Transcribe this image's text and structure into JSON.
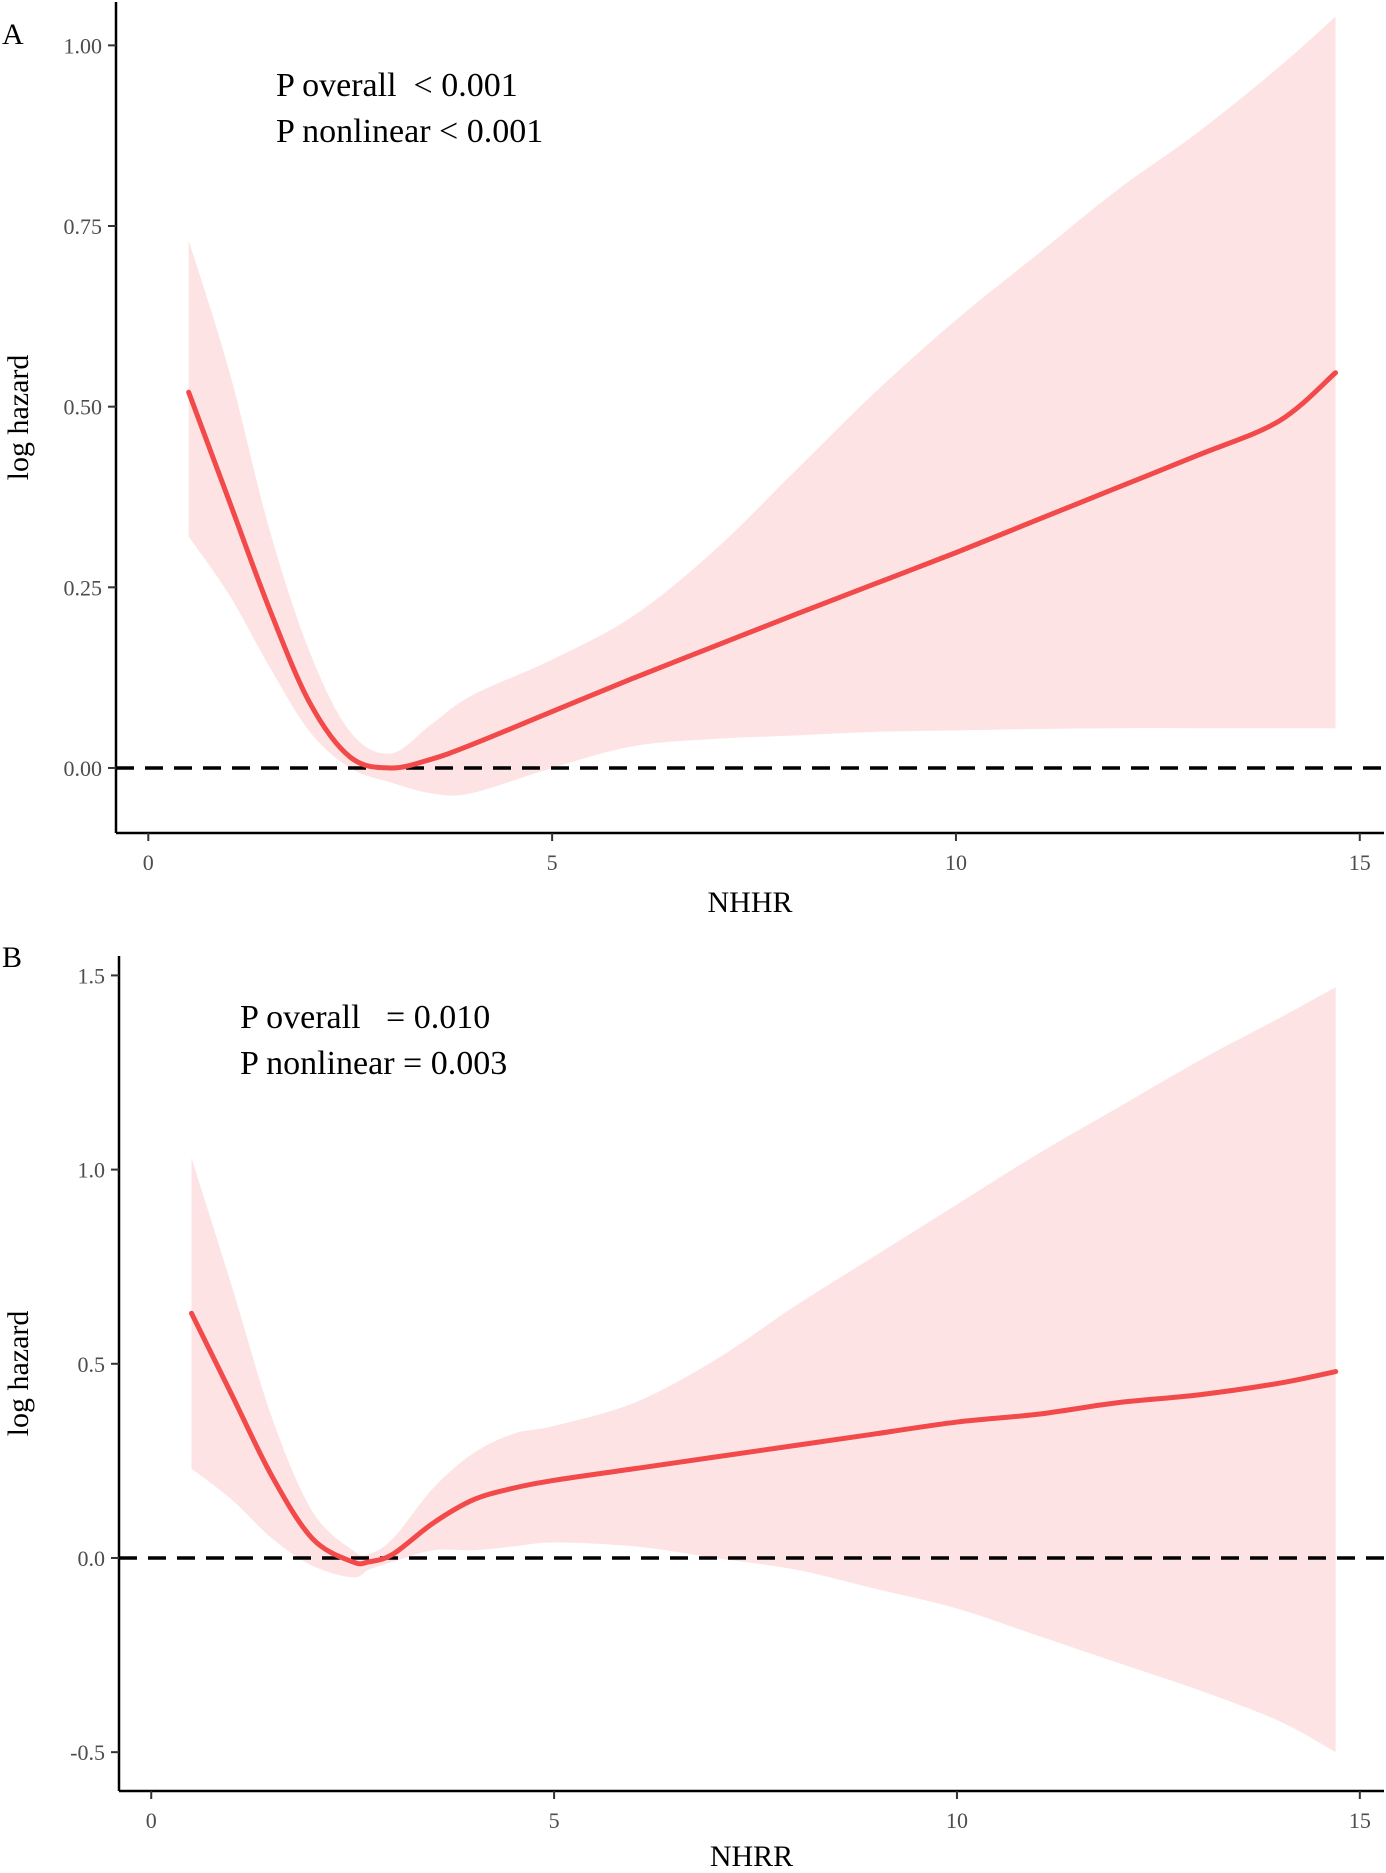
{
  "chart_data": [
    {
      "type": "line",
      "panel_label": "A",
      "xlabel": "NHHR",
      "ylabel": "log hazard",
      "xlim": [
        -0.4,
        15.3
      ],
      "ylim": [
        -0.09,
        1.06
      ],
      "x_ticks": [
        0,
        5,
        10,
        15
      ],
      "x_tick_labels": [
        "0",
        "5",
        "10",
        "15"
      ],
      "y_ticks": [
        0,
        0.25,
        0.5,
        0.75,
        1.0
      ],
      "y_tick_labels": [
        "0.00",
        "0.25",
        "0.50",
        "0.75",
        "1.00"
      ],
      "reference_line": 0,
      "annotations": [
        "P overall  < 0.001",
        "P nonlinear < 0.001"
      ],
      "line_color": "#f24a4a",
      "band_color": "#fde3e4",
      "series": [
        {
          "x": [
            0.5,
            1.0,
            1.5,
            2.0,
            2.5,
            3.0,
            3.5,
            4.0,
            5.0,
            6.0,
            7.0,
            8.0,
            9.0,
            10.0,
            11.0,
            12.0,
            13.0,
            14.0,
            14.7
          ],
          "y": [
            0.52,
            0.37,
            0.22,
            0.09,
            0.015,
            0.0,
            0.012,
            0.032,
            0.078,
            0.124,
            0.168,
            0.212,
            0.255,
            0.298,
            0.343,
            0.388,
            0.433,
            0.48,
            0.547
          ],
          "lower": [
            0.32,
            0.24,
            0.14,
            0.05,
            0.0,
            -0.02,
            -0.035,
            -0.035,
            0.0,
            0.03,
            0.04,
            0.045,
            0.05,
            0.052,
            0.054,
            0.055,
            0.055,
            0.055,
            0.055
          ],
          "upper": [
            0.73,
            0.55,
            0.33,
            0.16,
            0.05,
            0.02,
            0.06,
            0.1,
            0.15,
            0.21,
            0.3,
            0.41,
            0.52,
            0.62,
            0.71,
            0.8,
            0.88,
            0.97,
            1.04
          ]
        }
      ]
    },
    {
      "type": "line",
      "panel_label": "B",
      "xlabel": "NHRR",
      "ylabel": "log hazard",
      "xlim": [
        -0.4,
        15.3
      ],
      "ylim": [
        -0.6,
        1.55
      ],
      "x_ticks": [
        0,
        5,
        10,
        15
      ],
      "x_tick_labels": [
        "0",
        "5",
        "10",
        "15"
      ],
      "y_ticks": [
        -0.5,
        0,
        0.5,
        1.0,
        1.5
      ],
      "y_tick_labels": [
        "-0.5",
        "0.0",
        "0.5",
        "1.0",
        "1.5"
      ],
      "reference_line": 0,
      "annotations": [
        "P overall   = 0.010",
        "P nonlinear = 0.003"
      ],
      "line_color": "#f24a4a",
      "band_color": "#fde3e4",
      "series": [
        {
          "x": [
            0.5,
            1.0,
            1.5,
            2.0,
            2.5,
            2.7,
            3.0,
            3.5,
            4.0,
            4.5,
            5.0,
            6.0,
            7.0,
            8.0,
            9.0,
            10.0,
            11.0,
            12.0,
            13.0,
            14.0,
            14.7
          ],
          "y": [
            0.63,
            0.42,
            0.21,
            0.05,
            -0.01,
            -0.01,
            0.01,
            0.09,
            0.15,
            0.18,
            0.2,
            0.23,
            0.26,
            0.29,
            0.32,
            0.35,
            0.37,
            0.4,
            0.42,
            0.45,
            0.48
          ],
          "lower": [
            0.23,
            0.15,
            0.05,
            -0.02,
            -0.05,
            -0.03,
            -0.01,
            0.02,
            0.02,
            0.03,
            0.04,
            0.03,
            0.0,
            -0.03,
            -0.08,
            -0.13,
            -0.2,
            -0.27,
            -0.34,
            -0.42,
            -0.5
          ],
          "upper": [
            1.03,
            0.7,
            0.36,
            0.12,
            0.02,
            0.01,
            0.05,
            0.18,
            0.27,
            0.32,
            0.34,
            0.4,
            0.51,
            0.65,
            0.78,
            0.91,
            1.04,
            1.16,
            1.28,
            1.39,
            1.47
          ]
        }
      ]
    }
  ]
}
